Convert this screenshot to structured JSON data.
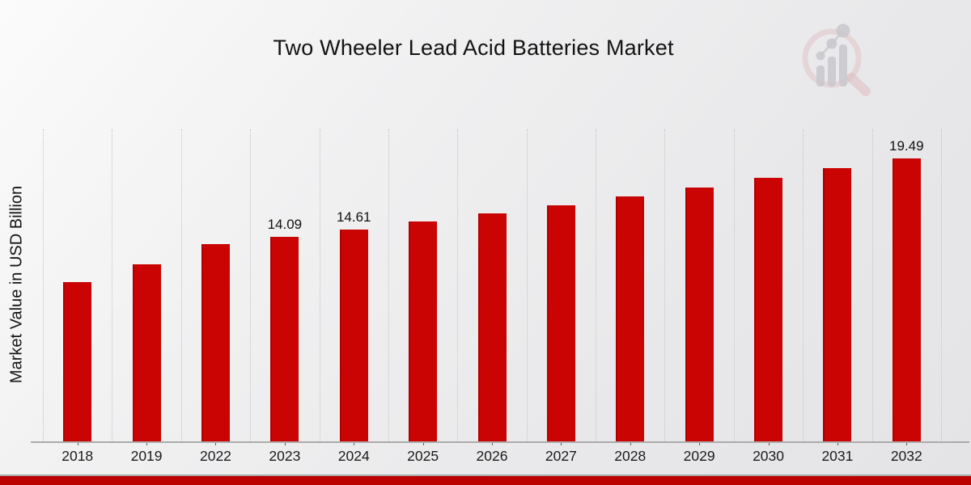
{
  "title": "Two Wheeler Lead Acid Batteries Market",
  "colors": {
    "bar": "#ca0303",
    "footer_bar": "#bc0101",
    "footer_divider": "#a8a8a8",
    "background_top_left": "#fbfbfb",
    "background_bottom_right": "#e4e4e6",
    "gridline": "#c3c3c4",
    "text": "#131313",
    "logo_ring_pink": "#e0bfc2",
    "logo_bars_gray": "#c7c7cb"
  },
  "watermark": {
    "icon": "magnifier-bar-chart-logo-icon"
  },
  "chart_data": {
    "type": "bar",
    "title": "Two Wheeler Lead Acid Batteries Market",
    "xlabel": "",
    "ylabel": "Market Value in USD Billion",
    "categories": [
      "2018",
      "2019",
      "2022",
      "2023",
      "2024",
      "2025",
      "2026",
      "2027",
      "2028",
      "2029",
      "2030",
      "2031",
      "2032"
    ],
    "values": [
      10.97,
      12.18,
      13.59,
      14.09,
      14.61,
      15.15,
      15.7,
      16.28,
      16.88,
      17.5,
      18.14,
      18.81,
      19.49
    ],
    "data_labels": [
      "",
      "",
      "",
      "14.09",
      "14.61",
      "",
      "",
      "",
      "",
      "",
      "",
      "",
      "19.49"
    ],
    "ylim": [
      0,
      21.5
    ],
    "bar_color": "#ca0303",
    "grid": "vertical dotted column separators, no horizontal gridlines, no y tick labels",
    "legend": "none"
  }
}
